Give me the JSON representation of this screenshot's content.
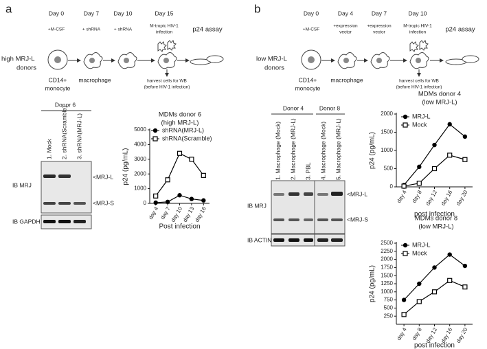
{
  "panel_a": {
    "label": "a",
    "days": [
      "Day 0",
      "Day 7",
      "Day 10",
      "Day 15"
    ],
    "treatments": [
      "+M-CSF",
      "+ shRNA",
      "+ shRNA"
    ],
    "infection": [
      "M-tropic HIV-1",
      "infection"
    ],
    "assay": "p24 assay",
    "donors": [
      "high MRJ-L",
      "donors"
    ],
    "monocyte": [
      "CD14+",
      "monocyte"
    ],
    "macrophage": "macrophage",
    "harvest": [
      "harvest cells for WB",
      "(before HIV-1 infection)"
    ],
    "blot": {
      "donor": "Donor 6",
      "lanes": [
        "1. Mock",
        "2. shRNA(Scramble)",
        "3. shRNA(MRJ-L)"
      ],
      "ib_main": "IB MRJ",
      "ib_control": "IB GAPDH",
      "band_l": "<MRJ-L",
      "band_s": "<MRJ-S"
    }
  },
  "panel_b": {
    "label": "b",
    "days": [
      "Day 0",
      "Day 4",
      "Day 7",
      "Day 10"
    ],
    "treatments": [
      "+M-CSF",
      [
        "+expression",
        "vector"
      ],
      [
        "+expression",
        "vector"
      ]
    ],
    "infection": [
      "M-tropic HIV-1",
      "infection"
    ],
    "assay": "p24 assay",
    "donors": [
      "low MRJ-L",
      "donors"
    ],
    "monocyte": [
      "CD14+",
      "monocyte"
    ],
    "macrophage": "macrophage",
    "harvest": [
      "harvest cells for WB",
      "(before HIV-1 infection)"
    ],
    "blot": {
      "donors": [
        "Donor 4",
        "Donor 8"
      ],
      "lanes": [
        "1. Macrophage (Mock)",
        "2. Macrophage (MRJ-L)",
        "3. PBL",
        "4. Macrophage (Mock)",
        "5. Macrophage (MRJ-L)"
      ],
      "ib_main": "IB MRJ",
      "ib_control": "IB ACTIN",
      "band_l": "<MRJ-L",
      "band_s": "<MRJ-S"
    }
  },
  "chart_data": [
    {
      "type": "line",
      "title": "MDMs donor 6",
      "subtitle": "(high MRJ-L)",
      "y_label": "p24 (pg/mL)",
      "x_label": "Post infection",
      "categories": [
        "day 4",
        "day 7",
        "day 10",
        "day 13",
        "day 16"
      ],
      "series": [
        {
          "name": "shRNA(MRJ-L)",
          "color": "#000000",
          "marker": "circle",
          "values": [
            50,
            100,
            550,
            300,
            200
          ]
        },
        {
          "name": "shRNA(Scramble)",
          "color": "#000000",
          "marker": "square",
          "values": [
            500,
            1600,
            3400,
            3000,
            1900
          ]
        }
      ],
      "ylim": [
        0,
        5000
      ],
      "yticks": [
        0,
        1000,
        2000,
        3000,
        4000,
        5000
      ]
    },
    {
      "type": "line",
      "title": "MDMs donor 4",
      "subtitle": "(low MRJ-L)",
      "y_label": "p24 (pg/mL)",
      "x_label": "post infection",
      "categories": [
        "day 4",
        "day 8",
        "day 12",
        "day 16",
        "day 20"
      ],
      "series": [
        {
          "name": "MRJ-L",
          "color": "#000000",
          "marker": "circle",
          "values": [
            50,
            550,
            1150,
            1720,
            1380
          ]
        },
        {
          "name": "Mock",
          "color": "#000000",
          "marker": "square",
          "values": [
            20,
            100,
            500,
            870,
            750
          ]
        }
      ],
      "ylim": [
        0,
        2000
      ],
      "yticks": [
        0,
        500,
        1000,
        1500,
        2000
      ]
    },
    {
      "type": "line",
      "title": "MDMs donor 8",
      "subtitle": "(low MRJ-L)",
      "y_label": "p24 (pg/mL)",
      "x_label": "post infection",
      "categories": [
        "day 4",
        "day 8",
        "day 12",
        "day 16",
        "day 20"
      ],
      "series": [
        {
          "name": "MRJ-L",
          "color": "#000000",
          "marker": "circle",
          "values": [
            750,
            1250,
            1750,
            2150,
            1800
          ]
        },
        {
          "name": "Mock",
          "color": "#000000",
          "marker": "square",
          "values": [
            300,
            700,
            1000,
            1350,
            1150
          ]
        }
      ],
      "ylim": [
        0,
        2500
      ],
      "yticks": [
        250,
        500,
        750,
        1000,
        1250,
        1500,
        1750,
        2000,
        2250,
        2500
      ]
    }
  ]
}
